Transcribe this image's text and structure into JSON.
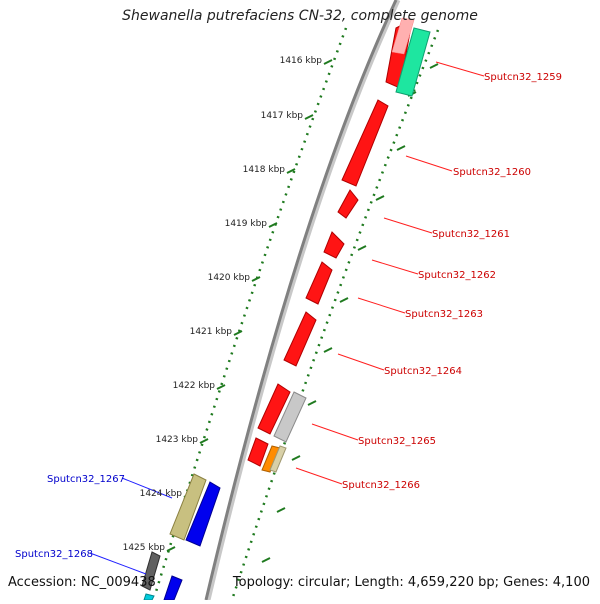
{
  "title": "Shewanella putrefaciens CN-32, complete genome",
  "footer": {
    "accession": "Accession: NC_009438",
    "summary": "Topology: circular; Length: 4,659,220 bp; Genes: 4,100"
  },
  "colors": {
    "backbone": "#808080",
    "tick": "#1f7a1f",
    "label_forward": "#cc0000",
    "label_reverse": "#0000cc"
  },
  "tick_labels": [
    "1416 kbp",
    "1417 kbp",
    "1418 kbp",
    "1419 kbp",
    "1420 kbp",
    "1421 kbp",
    "1422 kbp",
    "1423 kbp",
    "1424 kbp",
    "1425 kbp"
  ],
  "gene_labels_forward": [
    "Sputcn32_1259",
    "Sputcn32_1260",
    "Sputcn32_1261",
    "Sputcn32_1262",
    "Sputcn32_1263",
    "Sputcn32_1264",
    "Sputcn32_1265",
    "Sputcn32_1266"
  ],
  "gene_labels_reverse": [
    "Sputcn32_1267",
    "Sputcn32_1268"
  ]
}
